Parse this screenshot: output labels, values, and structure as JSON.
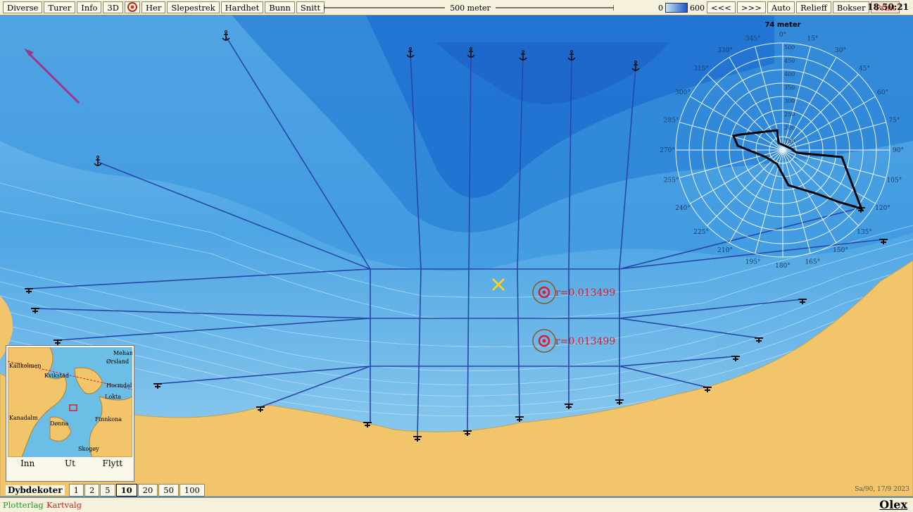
{
  "toolbar": {
    "diverse": "Diverse",
    "turer": "Turer",
    "info": "Info",
    "threed": "3D",
    "her": "Her",
    "slepestrek": "Slepestrek",
    "hardhet": "Hardhet",
    "bunn": "Bunn",
    "snitt": "Snitt"
  },
  "scale": {
    "label": "500 meter"
  },
  "depth_scale": {
    "min": "0",
    "max": "600"
  },
  "nav": {
    "back": "<<<",
    "forward": ">>>",
    "auto": "Auto",
    "relieff": "Relieff",
    "bokser": "Bokser",
    "print": "Print"
  },
  "clock": "18.50:21",
  "polar": {
    "depth_label": "74 meter",
    "angles": [
      "0°",
      "15°",
      "30°",
      "45°",
      "60°",
      "75°",
      "90°",
      "105°",
      "120°",
      "135°",
      "150°",
      "165°",
      "180°",
      "195°",
      "210°",
      "225°",
      "240°",
      "255°",
      "270°",
      "285°",
      "300°",
      "315°",
      "330°",
      "345°"
    ],
    "radii": [
      "500",
      "450",
      "400",
      "350",
      "300",
      "250",
      "200",
      "150"
    ]
  },
  "markers": {
    "r1": "r=0.013499",
    "r2": "r=0.013499"
  },
  "minimap": {
    "places": [
      "Kallkolmen",
      "Kvikstad",
      "Ørsland",
      "Hocmdal",
      "Lokta",
      "Kanadalm",
      "Dønna",
      "Finnkona",
      "Mehamn",
      "Skogøy"
    ],
    "inn": "Inn",
    "ut": "Ut",
    "flytt": "Flytt"
  },
  "depth_contours": {
    "label": "Dybdekoter",
    "options": [
      "1",
      "2",
      "5",
      "10",
      "20",
      "50",
      "100"
    ],
    "selected": "10"
  },
  "bottom": {
    "plotterlag": "Plotterlag",
    "kartvalg": "Kartvalg",
    "brand": "Olex",
    "date": "Sa/90, 17/9 2023"
  },
  "colors": {
    "deep": "#1e6fd0",
    "shallow": "#cfeaf8",
    "land": "#f2c56a",
    "track": "#2846a8",
    "marker_red": "#e01a2a",
    "cross": "#f5d22a",
    "arrow": "#9a3a8a"
  }
}
